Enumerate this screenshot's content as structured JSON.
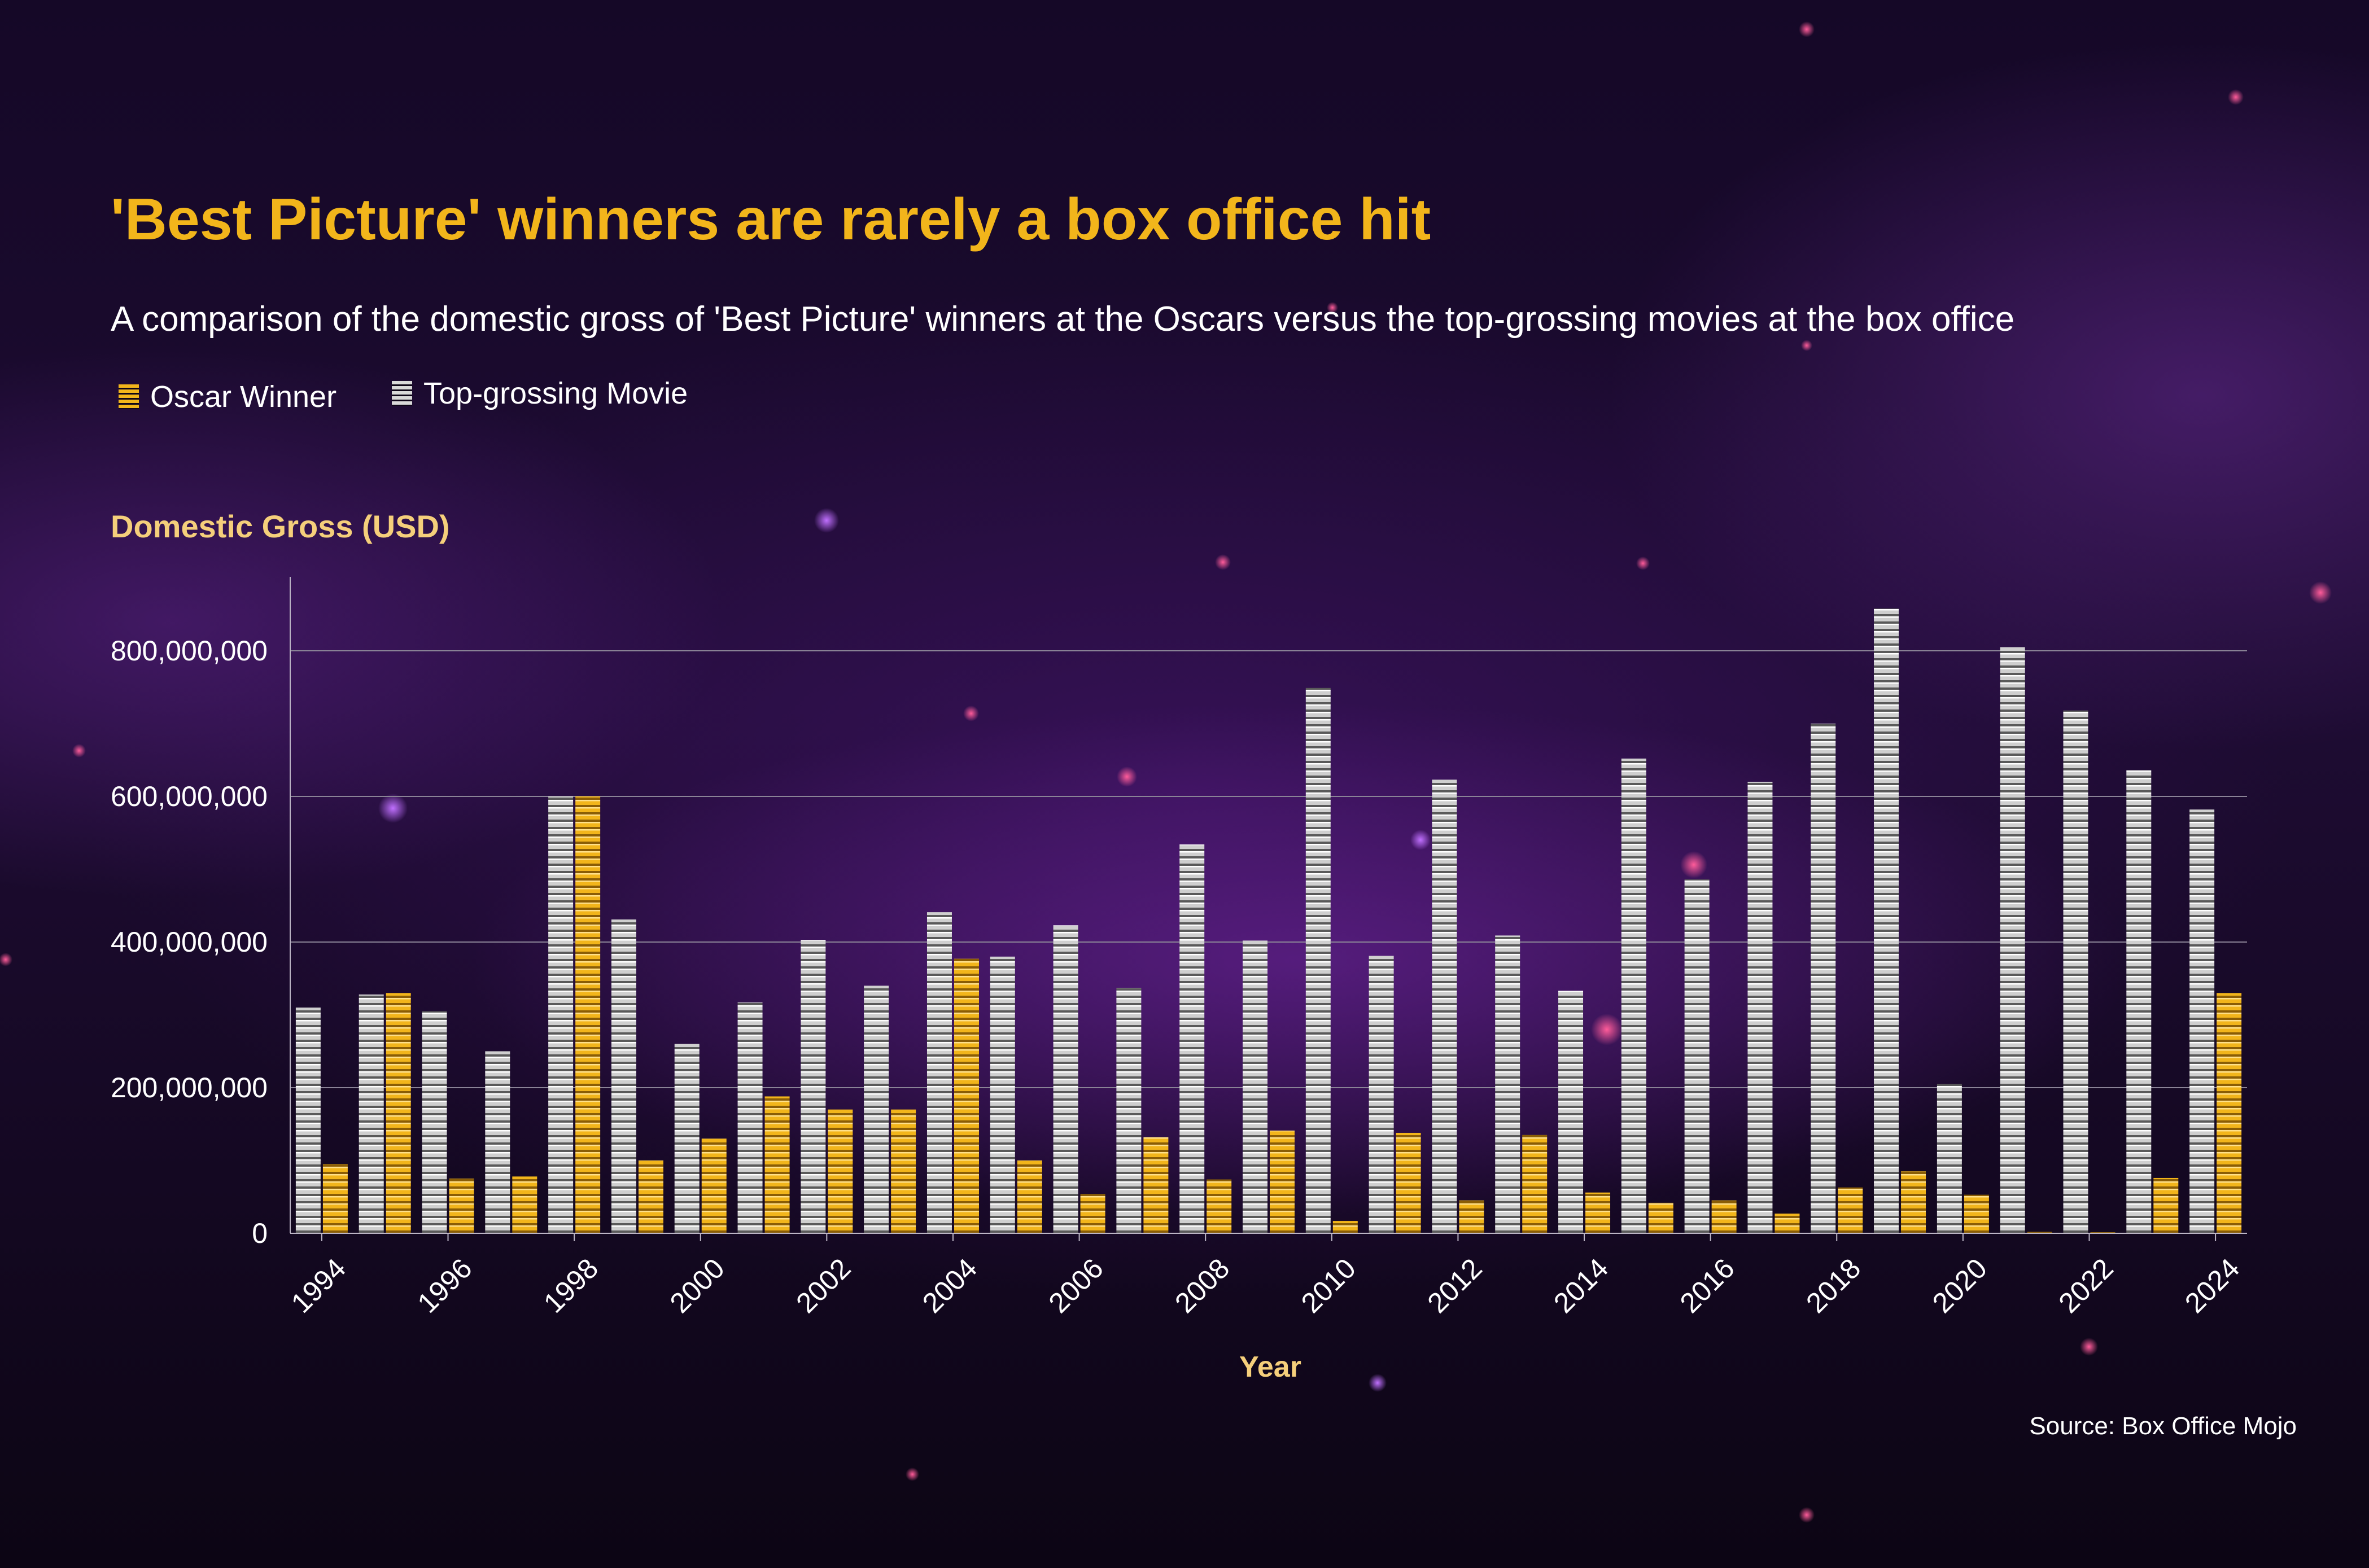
{
  "title": "'Best Picture' winners are rarely a box office hit",
  "subtitle": "A comparison of the domestic gross of 'Best Picture' winners at the Oscars versus the top-grossing movies at the box office",
  "legend": {
    "oscar_label": "Oscar Winner",
    "top_label": "Top-grossing Movie"
  },
  "source": "Source: Box Office Mojo",
  "colors": {
    "oscar": "#f2b51b",
    "top": "#d9d9d9",
    "title": "#f2b51b",
    "axis_title": "#f5cf7b"
  },
  "chart_data": {
    "type": "bar",
    "ylabel": "Domestic Gross (USD)",
    "xlabel": "Year",
    "ylim": [
      0,
      900000000
    ],
    "yticks": [
      0,
      200000000,
      400000000,
      600000000,
      800000000
    ],
    "ytick_labels": [
      "0",
      "200,000,000",
      "400,000,000",
      "600,000,000",
      "800,000,000"
    ],
    "xtick_labels": [
      "1994",
      "1996",
      "1998",
      "2000",
      "2002",
      "2004",
      "2006",
      "2008",
      "2010",
      "2012",
      "2014",
      "2016",
      "2018",
      "2020",
      "2022",
      "2024"
    ],
    "categories": [
      "1994",
      "1995",
      "1996",
      "1997",
      "1998",
      "1999",
      "2000",
      "2001",
      "2002",
      "2003",
      "2004",
      "2005",
      "2006",
      "2007",
      "2008",
      "2009",
      "2010",
      "2011",
      "2012",
      "2013",
      "2014",
      "2015",
      "2016",
      "2017",
      "2018",
      "2019",
      "2020",
      "2021",
      "2022",
      "2023",
      "2024"
    ],
    "series": [
      {
        "name": "Top-grossing Movie",
        "values": [
          310000000,
          328000000,
          305000000,
          250000000,
          600000000,
          431000000,
          260000000,
          317000000,
          403000000,
          340000000,
          441000000,
          380000000,
          423000000,
          337000000,
          534000000,
          402000000,
          749000000,
          381000000,
          623000000,
          409000000,
          333000000,
          652000000,
          486000000,
          620000000,
          700000000,
          858000000,
          205000000,
          805000000,
          718000000,
          636000000,
          582000000
        ]
      },
      {
        "name": "Oscar Winner",
        "values": [
          95000000,
          330000000,
          75000000,
          78000000,
          600000000,
          100000000,
          130000000,
          188000000,
          170000000,
          170000000,
          377000000,
          100000000,
          54000000,
          132000000,
          74000000,
          141000000,
          17000000,
          138000000,
          45000000,
          135000000,
          56000000,
          42000000,
          45000000,
          27000000,
          63000000,
          85000000,
          53000000,
          2000000,
          1000000,
          76000000,
          330000000
        ]
      }
    ]
  }
}
